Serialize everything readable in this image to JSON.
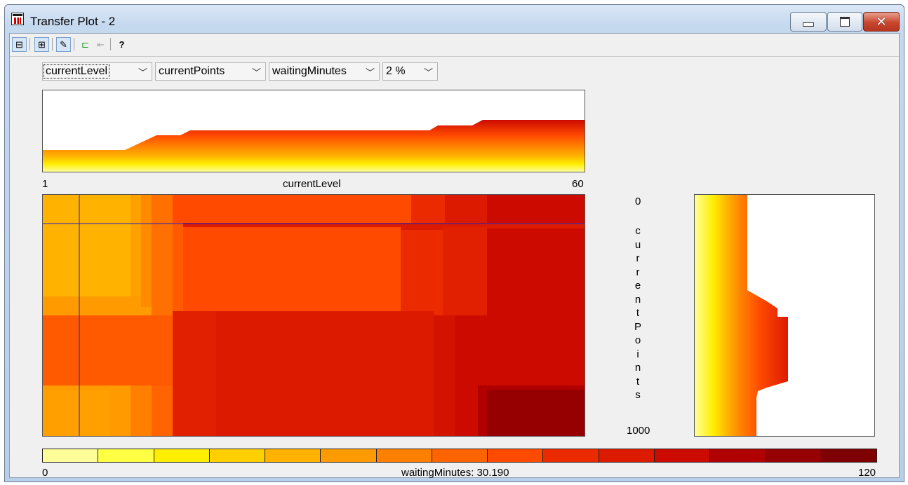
{
  "window": {
    "title": "Transfer Plot - 2"
  },
  "window_buttons": {
    "min_icon": "minimize-icon",
    "max_icon": "maximize-icon",
    "close_icon": "close-icon",
    "close_glyph": "✕"
  },
  "toolbar": {
    "buttons": [
      {
        "icon": "layout-icon",
        "glyph": "⊟"
      },
      {
        "icon": "export-icon",
        "glyph": "⊞"
      },
      {
        "icon": "brush-icon",
        "glyph": "✎"
      },
      {
        "icon": "plugin-icon",
        "glyph": "⊏"
      },
      {
        "icon": "first-icon",
        "glyph": "⇤"
      },
      {
        "icon": "help-icon",
        "glyph": "?"
      }
    ]
  },
  "selectors": {
    "x_variable": "currentLevel",
    "y_variable": "currentPoints",
    "z_variable": "waitingMinutes",
    "percent": "2 %",
    "chevron": "﹀"
  },
  "top_plot": {
    "x_min": "1",
    "x_label": "currentLevel",
    "x_max": "60"
  },
  "right_plot": {
    "y_min": "0",
    "y_label": "currentPoints",
    "y_max": "1000"
  },
  "colorbar": {
    "min": "0",
    "label": "waitingMinutes: 30.190",
    "max": "120",
    "colors": [
      "#ffff99",
      "#ffff44",
      "#ffee00",
      "#ffd000",
      "#ffb300",
      "#ff9a00",
      "#ff8000",
      "#ff6400",
      "#ff4a00",
      "#ec2a00",
      "#dc1a00",
      "#cc0a00",
      "#b00000",
      "#960000",
      "#7f0000"
    ]
  }
}
